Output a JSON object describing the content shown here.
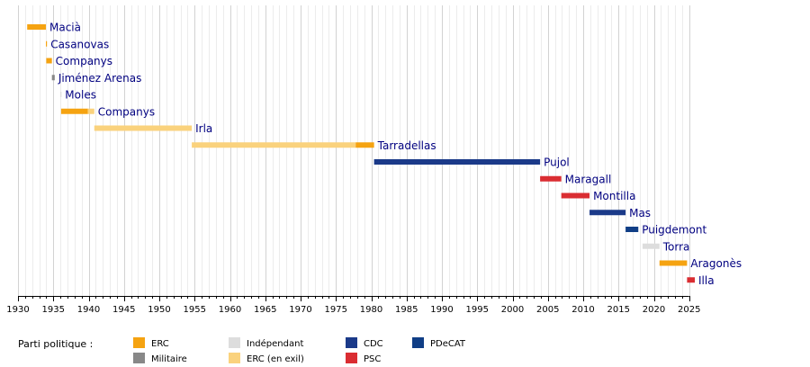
{
  "chart_data": {
    "type": "timeline",
    "title": "",
    "xlim": [
      1930,
      2025
    ],
    "x_ticks": [
      1930,
      1935,
      1940,
      1945,
      1950,
      1955,
      1960,
      1965,
      1970,
      1975,
      1980,
      1985,
      1990,
      1995,
      2000,
      2005,
      2010,
      2015,
      2020,
      2025
    ],
    "grid": "yearly vertical lines",
    "party_colors": {
      "ERC": "#F5A311",
      "Militaire": "#888888",
      "Indépendant": "#DDDDDD",
      "ERC (en exil)": "#FAD27D",
      "CDC": "#1B3A89",
      "PSC": "#DA2D32",
      "PDeCAT": "#103E86"
    },
    "rows": [
      {
        "name": "Macià",
        "segments": [
          {
            "start": 1931.3,
            "end": 1933.95,
            "party": "ERC"
          }
        ]
      },
      {
        "name": "Casanovas",
        "segments": [
          {
            "start": 1933.95,
            "end": 1934.0,
            "party": "ERC"
          }
        ]
      },
      {
        "name": "Companys",
        "segments": [
          {
            "start": 1934.0,
            "end": 1934.8,
            "party": "ERC"
          }
        ]
      },
      {
        "name": "Jiménez Arenas",
        "segments": [
          {
            "start": 1934.8,
            "end": 1935.2,
            "party": "Militaire"
          }
        ]
      },
      {
        "name": "Moles",
        "segments": [
          {
            "start": 1936.0,
            "end": 1936.1,
            "party": "Indépendant"
          }
        ]
      },
      {
        "name": "Companys",
        "segments": [
          {
            "start": 1936.1,
            "end": 1939.9,
            "party": "ERC"
          },
          {
            "start": 1939.9,
            "end": 1940.8,
            "party": "ERC (en exil)"
          }
        ]
      },
      {
        "name": "Irla",
        "segments": [
          {
            "start": 1940.8,
            "end": 1954.6,
            "party": "ERC (en exil)"
          }
        ]
      },
      {
        "name": "Tarradellas",
        "segments": [
          {
            "start": 1954.6,
            "end": 1977.8,
            "party": "ERC (en exil)"
          },
          {
            "start": 1977.8,
            "end": 1980.4,
            "party": "ERC"
          }
        ]
      },
      {
        "name": "Pujol",
        "segments": [
          {
            "start": 1980.4,
            "end": 2003.9,
            "party": "CDC"
          }
        ]
      },
      {
        "name": "Maragall",
        "segments": [
          {
            "start": 2003.9,
            "end": 2006.9,
            "party": "PSC"
          }
        ]
      },
      {
        "name": "Montilla",
        "segments": [
          {
            "start": 2006.9,
            "end": 2010.9,
            "party": "PSC"
          }
        ]
      },
      {
        "name": "Mas",
        "segments": [
          {
            "start": 2010.9,
            "end": 2016.0,
            "party": "CDC"
          }
        ]
      },
      {
        "name": "Puigdemont",
        "segments": [
          {
            "start": 2016.0,
            "end": 2017.8,
            "party": "PDeCAT"
          }
        ]
      },
      {
        "name": "Torra",
        "segments": [
          {
            "start": 2018.4,
            "end": 2020.8,
            "party": "Indépendant"
          }
        ]
      },
      {
        "name": "Aragonès",
        "segments": [
          {
            "start": 2020.8,
            "end": 2024.7,
            "party": "ERC"
          }
        ]
      },
      {
        "name": "Illa",
        "segments": [
          {
            "start": 2024.7,
            "end": 2025.8,
            "party": "PSC"
          }
        ]
      }
    ],
    "legend": {
      "title": "Parti politique :",
      "items": [
        "ERC",
        "Militaire",
        "Indépendant",
        "ERC (en exil)",
        "CDC",
        "PSC",
        "PDeCAT"
      ]
    }
  }
}
